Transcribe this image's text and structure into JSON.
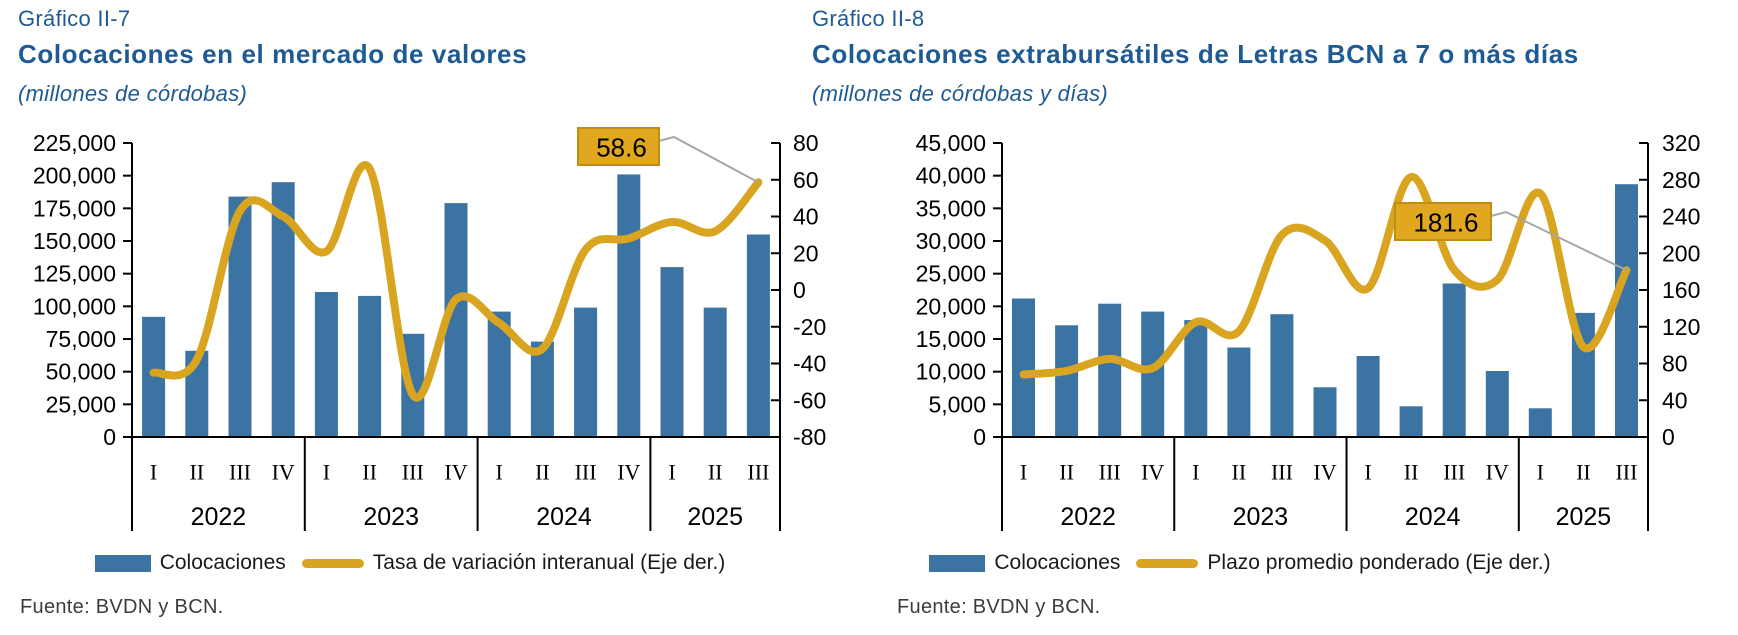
{
  "colors": {
    "bar": "#3B73A3",
    "line": "#D9A521",
    "title_blue": "#1E5B94",
    "label_box_fill": "#E0A71F",
    "label_box_border": "#BD8E13",
    "leader_gray": "#A6A6A6",
    "axis_black": "#000000"
  },
  "charts": [
    {
      "graf_label": "Gráfico II-7",
      "title": "Colocaciones en el mercado de valores",
      "subtitle": "(millones de córdobas)",
      "legend": {
        "bar_label": "Colocaciones",
        "line_label": "Tasa de variación interanual (Eje der.)"
      },
      "source": "Fuente: BVDN y BCN.",
      "chart_data": {
        "type": "bar+line",
        "categories": [
          "2022-I",
          "2022-II",
          "2022-III",
          "2022-IV",
          "2023-I",
          "2023-II",
          "2023-III",
          "2023-IV",
          "2024-I",
          "2024-II",
          "2024-III",
          "2024-IV",
          "2025-I",
          "2025-II",
          "2025-III"
        ],
        "years": [
          {
            "label": "2022",
            "quarters": [
              "I",
              "II",
              "III",
              "IV"
            ]
          },
          {
            "label": "2023",
            "quarters": [
              "I",
              "II",
              "III",
              "IV"
            ]
          },
          {
            "label": "2024",
            "quarters": [
              "I",
              "II",
              "III",
              "IV"
            ]
          },
          {
            "label": "2025",
            "quarters": [
              "I",
              "II",
              "III"
            ]
          }
        ],
        "series": [
          {
            "name": "Colocaciones",
            "type": "bar",
            "axis": "left",
            "values": [
              92000,
              66000,
              184000,
              195000,
              111000,
              108000,
              79000,
              179000,
              96000,
              73000,
              99000,
              201000,
              130000,
              99000,
              155000
            ]
          },
          {
            "name": "Tasa de variación interanual (Eje der.)",
            "type": "line",
            "axis": "right",
            "values": [
              -45,
              -38,
              43,
              40,
              21,
              66,
              -57,
              -5,
              -18,
              -32,
              22,
              28,
              37,
              32,
              58.6
            ]
          }
        ],
        "left_axis": {
          "min": 0,
          "max": 225000,
          "step": 25000,
          "ticks": [
            "225,000",
            "200,000",
            "175,000",
            "150,000",
            "125,000",
            "100,000",
            "75,000",
            "50,000",
            "25,000",
            "0"
          ]
        },
        "right_axis": {
          "min": -80,
          "max": 80,
          "step": 20,
          "ticks": [
            "80",
            "60",
            "40",
            "20",
            "0",
            "-20",
            "-40",
            "-60",
            "-80"
          ]
        },
        "data_label": {
          "text": "58.6",
          "value": 58.6,
          "point": "2025-III"
        },
        "grid": "off",
        "legend_position": "bottom"
      }
    },
    {
      "graf_label": "Gráfico II-8",
      "title": "Colocaciones extrabursátiles de Letras BCN a 7 o más días",
      "subtitle": "(millones de córdobas y días)",
      "legend": {
        "bar_label": "Colocaciones",
        "line_label": "Plazo promedio ponderado (Eje der.)"
      },
      "source": "Fuente: BVDN y BCN.",
      "chart_data": {
        "type": "bar+line",
        "categories": [
          "2022-I",
          "2022-II",
          "2022-III",
          "2022-IV",
          "2023-I",
          "2023-II",
          "2023-III",
          "2023-IV",
          "2024-I",
          "2024-II",
          "2024-III",
          "2024-IV",
          "2025-I",
          "2025-II",
          "2025-III"
        ],
        "years": [
          {
            "label": "2022",
            "quarters": [
              "I",
              "II",
              "III",
              "IV"
            ]
          },
          {
            "label": "2023",
            "quarters": [
              "I",
              "II",
              "III",
              "IV"
            ]
          },
          {
            "label": "2024",
            "quarters": [
              "I",
              "II",
              "III",
              "IV"
            ]
          },
          {
            "label": "2025",
            "quarters": [
              "I",
              "II",
              "III"
            ]
          }
        ],
        "series": [
          {
            "name": "Colocaciones",
            "type": "bar",
            "axis": "left",
            "values": [
              21200,
              17100,
              20400,
              19200,
              17900,
              13700,
              18800,
              7600,
              12400,
              4700,
              23500,
              10100,
              4400,
              19000,
              38700
            ]
          },
          {
            "name": "Plazo promedio ponderado (Eje der.)",
            "type": "line",
            "axis": "right",
            "values": [
              68,
              72,
              85,
              75,
              125,
              115,
              220,
              214,
              162,
              283,
              182,
              171,
              265,
              98,
              181.6
            ]
          }
        ],
        "left_axis": {
          "min": 0,
          "max": 45000,
          "step": 5000,
          "ticks": [
            "45,000",
            "40,000",
            "35,000",
            "30,000",
            "25,000",
            "20,000",
            "15,000",
            "10,000",
            "5,000",
            "0"
          ]
        },
        "right_axis": {
          "min": 0,
          "max": 320,
          "step": 40,
          "ticks": [
            "320",
            "280",
            "240",
            "200",
            "160",
            "120",
            "80",
            "40",
            "0"
          ]
        },
        "data_label": {
          "text": "181.6",
          "value": 181.6,
          "point": "2025-III"
        },
        "grid": "off",
        "legend_position": "bottom"
      }
    }
  ]
}
